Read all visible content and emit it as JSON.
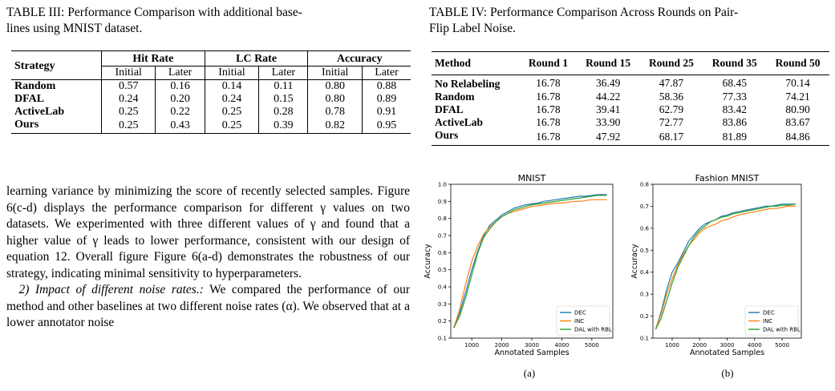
{
  "table3": {
    "caption_line1": "TABLE III: Performance Comparison with additional base-",
    "caption_line2": "lines using MNIST dataset.",
    "h_strategy": "Strategy",
    "h_hit": "Hit Rate",
    "h_lc": "LC Rate",
    "h_acc": "Accuracy",
    "sub_initial": "Initial",
    "sub_later": "Later",
    "rows": [
      {
        "name": "Random",
        "v": [
          "0.57",
          "0.16",
          "0.14",
          "0.11",
          "0.80",
          "0.88"
        ]
      },
      {
        "name": "DFAL",
        "v": [
          "0.24",
          "0.20",
          "0.24",
          "0.15",
          "0.80",
          "0.89"
        ]
      },
      {
        "name": "ActiveLab",
        "v": [
          "0.25",
          "0.22",
          "0.25",
          "0.28",
          "0.78",
          "0.91"
        ]
      },
      {
        "name": "Ours",
        "v": [
          "0.25",
          "0.43",
          "0.25",
          "0.39",
          "0.82",
          "0.95"
        ]
      }
    ]
  },
  "table4": {
    "caption_line1": "TABLE IV: Performance Comparison Across Rounds on Pair-",
    "caption_line2": "Flip Label Noise.",
    "headers": [
      "Method",
      "Round 1",
      "Round 15",
      "Round 25",
      "Round 35",
      "Round 50"
    ],
    "rows": [
      {
        "name": "No Relabeling",
        "v": [
          "16.78",
          "36.49",
          "47.87",
          "68.45",
          "70.14"
        ]
      },
      {
        "name": "Random",
        "v": [
          "16.78",
          "44.22",
          "58.36",
          "77.33",
          "74.21"
        ]
      },
      {
        "name": "DFAL",
        "v": [
          "16.78",
          "39.41",
          "62.79",
          "83.42",
          "80.90"
        ]
      },
      {
        "name": "ActiveLab",
        "v": [
          "16.78",
          "33.90",
          "72.77",
          "83.86",
          "83.67"
        ]
      },
      {
        "name": "Ours",
        "v": [
          "16.78",
          "47.92",
          "68.17",
          "81.89",
          "84.86"
        ]
      }
    ]
  },
  "body": {
    "p1": "learning variance by minimizing the score of recently selected samples. Figure 6(c-d) displays the performance comparison for different γ values on two datasets. We experimented with three different values of γ and found that a higher value of γ leads to lower performance, consistent with our design of equation 12. Overall figure Figure 6(a-d) demonstrates the robustness of our strategy, indicating minimal sensitivity to hyperparameters.",
    "p2_heading": "2) Impact of different noise rates.:",
    "p2_text": " We compared the performance of our method and other baselines at two different noise rates (α). We observed that at a lower annotator noise"
  },
  "colors": {
    "DEC": "#1f77b4",
    "INC": "#ff7f0e",
    "DAL with RBL": "#2ca02c"
  },
  "chart_data": [
    {
      "type": "line",
      "title": "MNIST",
      "xlabel": "Annotated Samples",
      "ylabel": "Accuracy",
      "panel_label": "(a)",
      "xlim": [
        300,
        5700
      ],
      "ylim": [
        0.1,
        1.0
      ],
      "xticks": [
        "1000",
        "2000",
        "3000",
        "4000",
        "5000"
      ],
      "yticks": [
        "0.1",
        "0.2",
        "0.3",
        "0.4",
        "0.5",
        "0.6",
        "0.7",
        "0.8",
        "0.9",
        "1.0"
      ],
      "legend": "bottom-right",
      "series": [
        {
          "name": "DEC",
          "x": [
            400,
            600,
            800,
            1000,
            1200,
            1400,
            1600,
            1800,
            2000,
            2200,
            2400,
            2600,
            2800,
            3000,
            3200,
            3400,
            3600,
            3800,
            4000,
            4200,
            4400,
            4600,
            4800,
            5000,
            5200,
            5500
          ],
          "y": [
            0.16,
            0.25,
            0.37,
            0.5,
            0.61,
            0.7,
            0.76,
            0.79,
            0.82,
            0.84,
            0.86,
            0.87,
            0.88,
            0.885,
            0.89,
            0.9,
            0.905,
            0.91,
            0.915,
            0.92,
            0.925,
            0.93,
            0.93,
            0.935,
            0.94,
            0.94
          ]
        },
        {
          "name": "INC",
          "x": [
            400,
            600,
            800,
            1000,
            1200,
            1400,
            1600,
            1800,
            2000,
            2200,
            2400,
            2600,
            2800,
            3000,
            3200,
            3400,
            3600,
            3800,
            4000,
            4200,
            4400,
            4600,
            4800,
            5000,
            5200,
            5500
          ],
          "y": [
            0.16,
            0.27,
            0.42,
            0.55,
            0.64,
            0.71,
            0.75,
            0.78,
            0.81,
            0.83,
            0.84,
            0.85,
            0.86,
            0.87,
            0.875,
            0.88,
            0.885,
            0.89,
            0.89,
            0.895,
            0.9,
            0.9,
            0.905,
            0.91,
            0.91,
            0.91
          ]
        },
        {
          "name": "DAL with RBL",
          "x": [
            400,
            600,
            800,
            1000,
            1200,
            1400,
            1600,
            1800,
            2000,
            2200,
            2400,
            2600,
            2800,
            3000,
            3200,
            3400,
            3600,
            3800,
            4000,
            4200,
            4400,
            4600,
            4800,
            5000,
            5200,
            5500
          ],
          "y": [
            0.16,
            0.23,
            0.34,
            0.47,
            0.6,
            0.69,
            0.74,
            0.78,
            0.81,
            0.83,
            0.85,
            0.86,
            0.87,
            0.88,
            0.885,
            0.89,
            0.895,
            0.9,
            0.905,
            0.91,
            0.915,
            0.92,
            0.925,
            0.93,
            0.935,
            0.935
          ]
        }
      ]
    },
    {
      "type": "line",
      "title": "Fashion MNIST",
      "xlabel": "Annotated Samples",
      "ylabel": "Accuracy",
      "panel_label": "(b)",
      "xlim": [
        300,
        5700
      ],
      "ylim": [
        0.1,
        0.8
      ],
      "xticks": [
        "1000",
        "2000",
        "3000",
        "4000",
        "5000"
      ],
      "yticks": [
        "0.1",
        "0.2",
        "0.3",
        "0.4",
        "0.5",
        "0.6",
        "0.7",
        "0.8"
      ],
      "legend": "bottom-right",
      "series": [
        {
          "name": "DEC",
          "x": [
            400,
            600,
            800,
            1000,
            1200,
            1400,
            1600,
            1800,
            2000,
            2200,
            2400,
            2600,
            2800,
            3000,
            3200,
            3400,
            3600,
            3800,
            4000,
            4200,
            4400,
            4600,
            4800,
            5000,
            5200,
            5500
          ],
          "y": [
            0.14,
            0.22,
            0.32,
            0.4,
            0.44,
            0.49,
            0.54,
            0.57,
            0.6,
            0.62,
            0.63,
            0.64,
            0.655,
            0.66,
            0.67,
            0.675,
            0.68,
            0.685,
            0.69,
            0.695,
            0.7,
            0.7,
            0.705,
            0.71,
            0.71,
            0.71
          ]
        },
        {
          "name": "INC",
          "x": [
            400,
            600,
            800,
            1000,
            1200,
            1400,
            1600,
            1800,
            2000,
            2200,
            2400,
            2600,
            2800,
            3000,
            3200,
            3400,
            3600,
            3800,
            4000,
            4200,
            4400,
            4600,
            4800,
            5000,
            5200,
            5500
          ],
          "y": [
            0.14,
            0.21,
            0.3,
            0.37,
            0.43,
            0.48,
            0.52,
            0.55,
            0.58,
            0.6,
            0.61,
            0.62,
            0.635,
            0.64,
            0.65,
            0.66,
            0.665,
            0.67,
            0.675,
            0.68,
            0.685,
            0.69,
            0.69,
            0.695,
            0.7,
            0.7
          ]
        },
        {
          "name": "DAL with RBL",
          "x": [
            400,
            600,
            800,
            1000,
            1200,
            1400,
            1600,
            1800,
            2000,
            2200,
            2400,
            2600,
            2800,
            3000,
            3200,
            3400,
            3600,
            3800,
            4000,
            4200,
            4400,
            4600,
            4800,
            5000,
            5200,
            5500
          ],
          "y": [
            0.14,
            0.19,
            0.27,
            0.35,
            0.42,
            0.47,
            0.52,
            0.56,
            0.59,
            0.61,
            0.63,
            0.64,
            0.65,
            0.655,
            0.665,
            0.67,
            0.675,
            0.68,
            0.685,
            0.69,
            0.695,
            0.7,
            0.7,
            0.705,
            0.705,
            0.71
          ]
        }
      ]
    }
  ]
}
